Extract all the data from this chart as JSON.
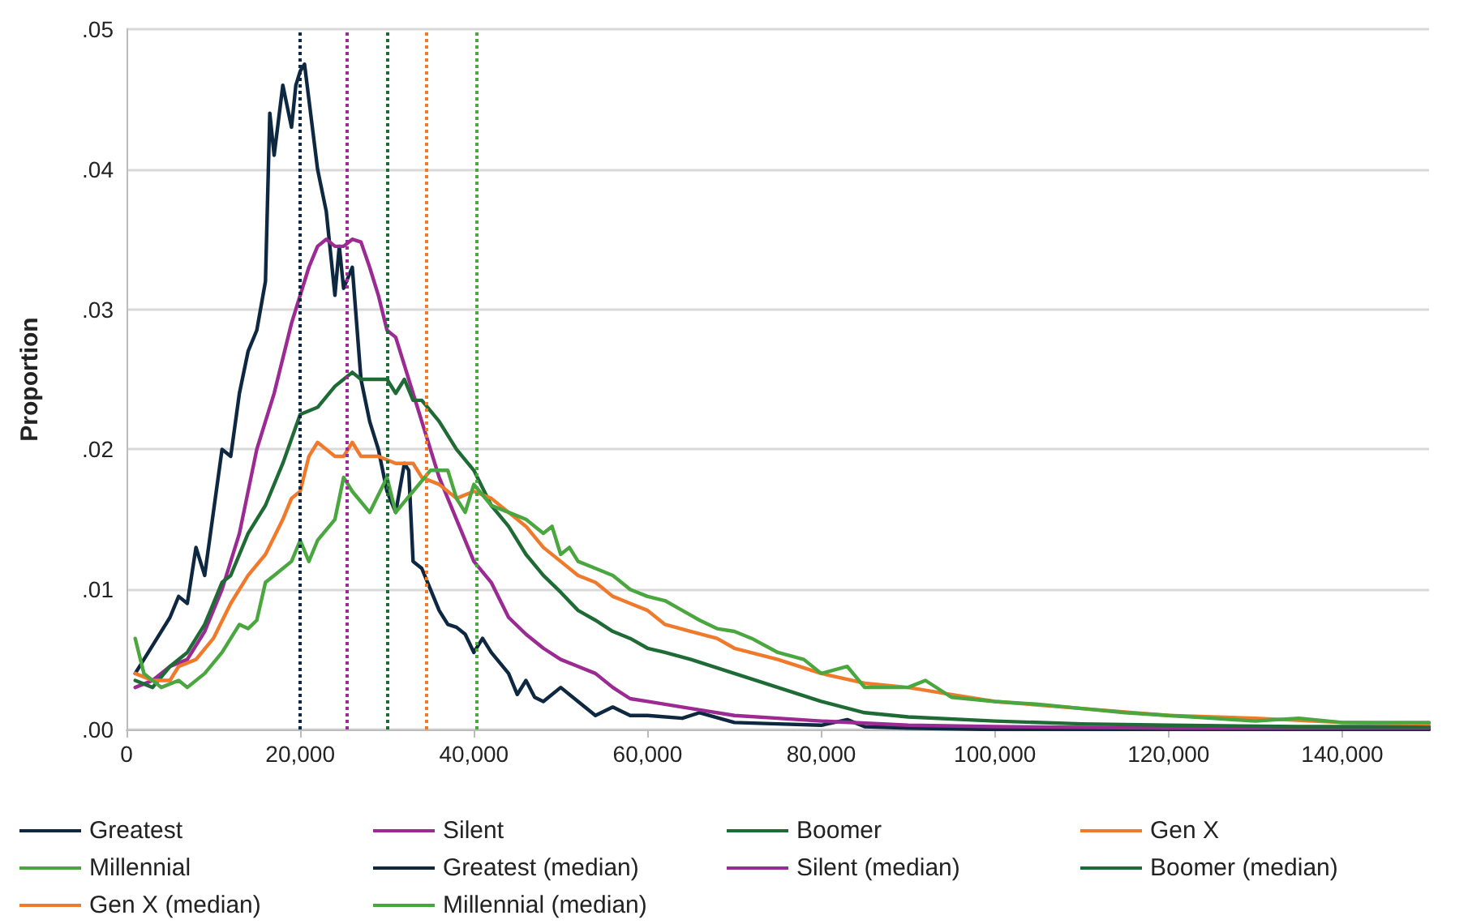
{
  "chart_data": {
    "type": "line",
    "ylabel": "Proportion",
    "xlim": [
      0,
      150000
    ],
    "xticks": [
      0,
      {
        "value": 20000,
        "label": "20,000"
      },
      {
        "value": 40000,
        "label": "40,000"
      },
      {
        "value": 60000,
        "label": "60,000"
      },
      {
        "value": 80000,
        "label": "80,000"
      },
      {
        "value": 100000,
        "label": "100,000"
      },
      {
        "value": 120000,
        "label": "120,000"
      },
      {
        "value": 140000,
        "label": "140,000"
      }
    ],
    "ylim": [
      0,
      0.05
    ],
    "yticks": [
      {
        "value": 0,
        "label": ".00"
      },
      {
        "value": 0.01,
        "label": ".01"
      },
      {
        "value": 0.02,
        "label": ".02"
      },
      {
        "value": 0.03,
        "label": ".03"
      },
      {
        "value": 0.04,
        "label": ".04"
      },
      {
        "value": 0.05,
        "label": ".05"
      }
    ],
    "grid": "y",
    "legend": "bottom",
    "marker": "none",
    "line_style": "solid",
    "series": [
      {
        "name": "Greatest",
        "color": "#0d2840",
        "x": [
          1000,
          3000,
          5000,
          6000,
          7000,
          8000,
          9000,
          11000,
          12000,
          13000,
          14000,
          15000,
          16000,
          16500,
          17000,
          18000,
          19000,
          19500,
          20000,
          20500,
          21000,
          22000,
          23000,
          24000,
          24500,
          25000,
          26000,
          27000,
          28000,
          29000,
          30000,
          31000,
          32000,
          32500,
          33000,
          34000,
          35000,
          36000,
          37000,
          38000,
          39000,
          40000,
          41000,
          42000,
          44000,
          45000,
          46000,
          47000,
          48000,
          50000,
          52000,
          54000,
          56000,
          58000,
          60000,
          64000,
          66000,
          70000,
          75000,
          80000,
          83000,
          85000,
          90000,
          100000,
          110000,
          120000,
          130000,
          140000,
          150000
        ],
        "values": [
          0.004,
          0.006,
          0.008,
          0.0095,
          0.009,
          0.013,
          0.011,
          0.02,
          0.0195,
          0.024,
          0.027,
          0.0285,
          0.032,
          0.044,
          0.041,
          0.046,
          0.043,
          0.046,
          0.047,
          0.0475,
          0.045,
          0.04,
          0.037,
          0.031,
          0.0345,
          0.0315,
          0.033,
          0.025,
          0.022,
          0.02,
          0.017,
          0.0155,
          0.019,
          0.0185,
          0.012,
          0.0115,
          0.01,
          0.0085,
          0.0075,
          0.0073,
          0.0068,
          0.0055,
          0.0065,
          0.0055,
          0.004,
          0.0025,
          0.0035,
          0.0023,
          0.002,
          0.003,
          0.002,
          0.001,
          0.0016,
          0.001,
          0.001,
          0.0008,
          0.0012,
          0.0005,
          0.0004,
          0.0003,
          0.0007,
          0.0002,
          0.0001,
          0,
          0,
          0,
          0,
          0,
          0
        ]
      },
      {
        "name": "Silent",
        "color": "#9b2a93",
        "x": [
          1000,
          3000,
          5000,
          7000,
          9000,
          11000,
          13000,
          15000,
          17000,
          19000,
          21000,
          22000,
          23000,
          24000,
          25000,
          26000,
          27000,
          28000,
          29000,
          30000,
          31000,
          32000,
          34000,
          36000,
          38000,
          40000,
          42000,
          44000,
          46000,
          48000,
          50000,
          52000,
          54000,
          56000,
          58000,
          60000,
          65000,
          70000,
          75000,
          80000,
          90000,
          100000,
          120000,
          150000
        ],
        "values": [
          0.003,
          0.0035,
          0.0045,
          0.005,
          0.007,
          0.01,
          0.014,
          0.02,
          0.024,
          0.029,
          0.033,
          0.0345,
          0.035,
          0.0345,
          0.0345,
          0.035,
          0.0348,
          0.033,
          0.031,
          0.0285,
          0.028,
          0.026,
          0.022,
          0.018,
          0.015,
          0.012,
          0.0105,
          0.008,
          0.0068,
          0.0058,
          0.005,
          0.0045,
          0.004,
          0.003,
          0.0022,
          0.002,
          0.0015,
          0.001,
          0.0008,
          0.0006,
          0.0003,
          0.0002,
          0.0001,
          0.0001
        ]
      },
      {
        "name": "Boomer",
        "color": "#1f6b35",
        "x": [
          1000,
          3000,
          5000,
          7000,
          9000,
          10000,
          11000,
          12000,
          14000,
          16000,
          18000,
          20000,
          22000,
          24000,
          25000,
          26000,
          27000,
          28000,
          30000,
          31000,
          32000,
          33000,
          34000,
          36000,
          38000,
          40000,
          42000,
          44000,
          46000,
          48000,
          50000,
          52000,
          54000,
          56000,
          58000,
          60000,
          62000,
          65000,
          70000,
          75000,
          80000,
          85000,
          90000,
          100000,
          110000,
          120000,
          135000,
          150000
        ],
        "values": [
          0.0035,
          0.003,
          0.0045,
          0.0055,
          0.0075,
          0.009,
          0.0105,
          0.011,
          0.014,
          0.016,
          0.019,
          0.0225,
          0.023,
          0.0245,
          0.025,
          0.0255,
          0.025,
          0.025,
          0.025,
          0.024,
          0.025,
          0.0235,
          0.0235,
          0.022,
          0.02,
          0.0185,
          0.016,
          0.0145,
          0.0125,
          0.011,
          0.0098,
          0.0085,
          0.0078,
          0.007,
          0.0065,
          0.0058,
          0.0055,
          0.005,
          0.004,
          0.003,
          0.002,
          0.0012,
          0.0009,
          0.0006,
          0.0004,
          0.0003,
          0.0002,
          0.0002
        ]
      },
      {
        "name": "Gen X",
        "color": "#f07a2b",
        "x": [
          1000,
          3000,
          5000,
          6000,
          8000,
          10000,
          12000,
          14000,
          16000,
          18000,
          19000,
          20000,
          21000,
          22000,
          23000,
          24000,
          25000,
          26000,
          27000,
          29000,
          31000,
          33000,
          34000,
          36000,
          38000,
          40000,
          42000,
          44000,
          46000,
          48000,
          50000,
          52000,
          54000,
          56000,
          58000,
          60000,
          62000,
          65000,
          68000,
          70000,
          75000,
          80000,
          85000,
          90000,
          95000,
          100000,
          110000,
          120000,
          130000,
          140000,
          150000
        ],
        "values": [
          0.004,
          0.0035,
          0.0035,
          0.0045,
          0.005,
          0.0065,
          0.009,
          0.011,
          0.0125,
          0.015,
          0.0165,
          0.017,
          0.0195,
          0.0205,
          0.02,
          0.0195,
          0.0195,
          0.0205,
          0.0195,
          0.0195,
          0.019,
          0.019,
          0.018,
          0.0175,
          0.0165,
          0.017,
          0.0165,
          0.0155,
          0.0145,
          0.013,
          0.012,
          0.011,
          0.0105,
          0.0095,
          0.009,
          0.0085,
          0.0075,
          0.007,
          0.0065,
          0.0058,
          0.005,
          0.004,
          0.0033,
          0.003,
          0.0025,
          0.002,
          0.0015,
          0.001,
          0.0008,
          0.0005,
          0.0004
        ]
      },
      {
        "name": "Millennial",
        "color": "#4aa63e",
        "x": [
          1000,
          2000,
          4000,
          6000,
          7000,
          9000,
          11000,
          13000,
          14000,
          15000,
          16000,
          17000,
          19000,
          20000,
          21000,
          22000,
          24000,
          25000,
          26000,
          28000,
          30000,
          31000,
          33000,
          35000,
          37000,
          38000,
          39000,
          40000,
          42000,
          44000,
          46000,
          48000,
          49000,
          50000,
          51000,
          52000,
          54000,
          56000,
          58000,
          60000,
          62000,
          64000,
          66000,
          68000,
          70000,
          72000,
          75000,
          78000,
          80000,
          83000,
          85000,
          88000,
          90000,
          92000,
          95000,
          100000,
          105000,
          110000,
          115000,
          120000,
          125000,
          130000,
          135000,
          140000,
          150000
        ],
        "values": [
          0.0065,
          0.004,
          0.003,
          0.0035,
          0.003,
          0.004,
          0.0055,
          0.0075,
          0.0072,
          0.0078,
          0.0105,
          0.011,
          0.012,
          0.0135,
          0.012,
          0.0135,
          0.015,
          0.018,
          0.017,
          0.0155,
          0.018,
          0.0155,
          0.017,
          0.0185,
          0.0185,
          0.0165,
          0.0155,
          0.0175,
          0.016,
          0.0155,
          0.015,
          0.014,
          0.0145,
          0.0125,
          0.013,
          0.012,
          0.0115,
          0.011,
          0.01,
          0.0095,
          0.0092,
          0.0085,
          0.0078,
          0.0072,
          0.007,
          0.0065,
          0.0055,
          0.005,
          0.004,
          0.0045,
          0.003,
          0.003,
          0.003,
          0.0035,
          0.0023,
          0.002,
          0.0018,
          0.0015,
          0.0012,
          0.001,
          0.0008,
          0.0006,
          0.0008,
          0.0005,
          0.0005
        ]
      }
    ],
    "ref_lines": [
      {
        "axis": "x",
        "value": 20000,
        "label": "Greatest (median)",
        "color": "#0d2840",
        "line_style": "dotted"
      },
      {
        "axis": "x",
        "value": 25400,
        "label": "Silent (median)",
        "color": "#9b2a93",
        "line_style": "dotted"
      },
      {
        "axis": "x",
        "value": 30000,
        "label": "Boomer (median)",
        "color": "#1f6b35",
        "line_style": "dotted"
      },
      {
        "axis": "x",
        "value": 34500,
        "label": "Gen X (median)",
        "color": "#f07a2b",
        "line_style": "dotted"
      },
      {
        "axis": "x",
        "value": 40300,
        "label": "Millennial (median)",
        "color": "#4aa63e",
        "line_style": "dotted"
      }
    ]
  }
}
